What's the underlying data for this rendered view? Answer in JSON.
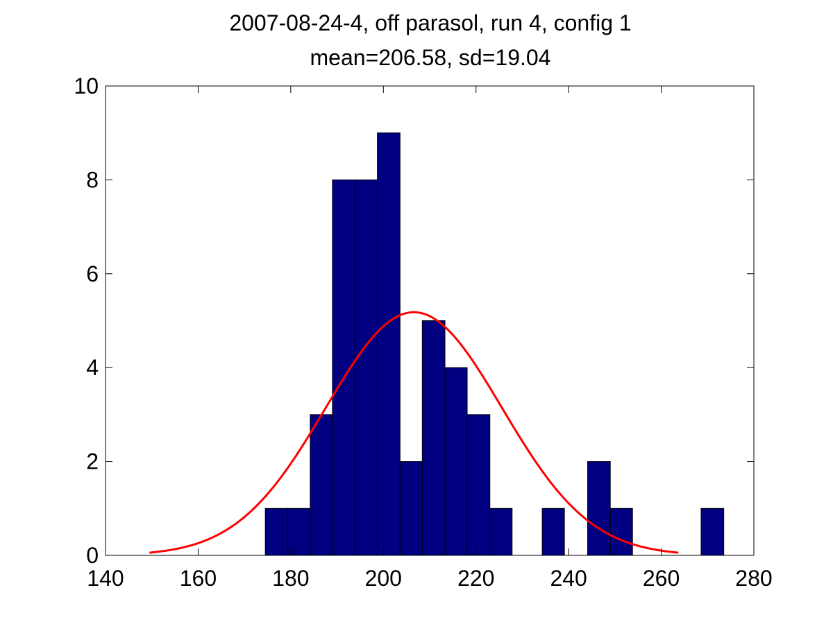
{
  "chart_data": {
    "type": "bar",
    "title": "2007-08-24-4, off parasol, run 4, config 1",
    "subtitle": "mean=206.58, sd=19.04",
    "xlabel": "",
    "ylabel": "",
    "xlim": [
      140,
      280
    ],
    "ylim": [
      0,
      10
    ],
    "grid": false,
    "x_ticks": [
      140,
      160,
      180,
      200,
      220,
      240,
      260,
      280
    ],
    "y_ticks": [
      0,
      2,
      4,
      6,
      8,
      10
    ],
    "bars": [
      {
        "x0": 174.5,
        "x1": 179.3,
        "value": 1
      },
      {
        "x0": 179.3,
        "x1": 184.2,
        "value": 1
      },
      {
        "x0": 184.2,
        "x1": 189.0,
        "value": 3
      },
      {
        "x0": 189.0,
        "x1": 193.9,
        "value": 8
      },
      {
        "x0": 193.9,
        "x1": 198.7,
        "value": 8
      },
      {
        "x0": 198.7,
        "x1": 203.6,
        "value": 9
      },
      {
        "x0": 203.6,
        "x1": 208.4,
        "value": 2
      },
      {
        "x0": 208.4,
        "x1": 213.3,
        "value": 5
      },
      {
        "x0": 213.3,
        "x1": 218.1,
        "value": 4
      },
      {
        "x0": 218.1,
        "x1": 223.0,
        "value": 3
      },
      {
        "x0": 223.0,
        "x1": 227.8,
        "value": 1
      },
      {
        "x0": 227.8,
        "x1": 232.7,
        "value": 0
      },
      {
        "x0": 232.7,
        "x1": 237.5,
        "value": 0
      },
      {
        "x0": 234.3,
        "x1": 239.1,
        "value": 1
      },
      {
        "x0": 239.1,
        "x1": 244.0,
        "value": 0
      },
      {
        "x0": 244.1,
        "x1": 249.0,
        "value": 2
      },
      {
        "x0": 249.0,
        "x1": 253.8,
        "value": 1
      },
      {
        "x0": 253.8,
        "x1": 258.7,
        "value": 0
      },
      {
        "x0": 258.7,
        "x1": 263.5,
        "value": 0
      },
      {
        "x0": 263.5,
        "x1": 268.4,
        "value": 0
      },
      {
        "x0": 268.6,
        "x1": 273.5,
        "value": 1
      }
    ],
    "fit_curve": {
      "type": "normal",
      "mean": 206.58,
      "sd": 19.04,
      "peak": 5.18,
      "x_range": [
        149.5,
        263.7
      ]
    },
    "colors": {
      "bar_fill": "#000080",
      "bar_edge": "#000000",
      "curve": "#ff0000",
      "axes": "#000000",
      "background": "#ffffff"
    }
  }
}
